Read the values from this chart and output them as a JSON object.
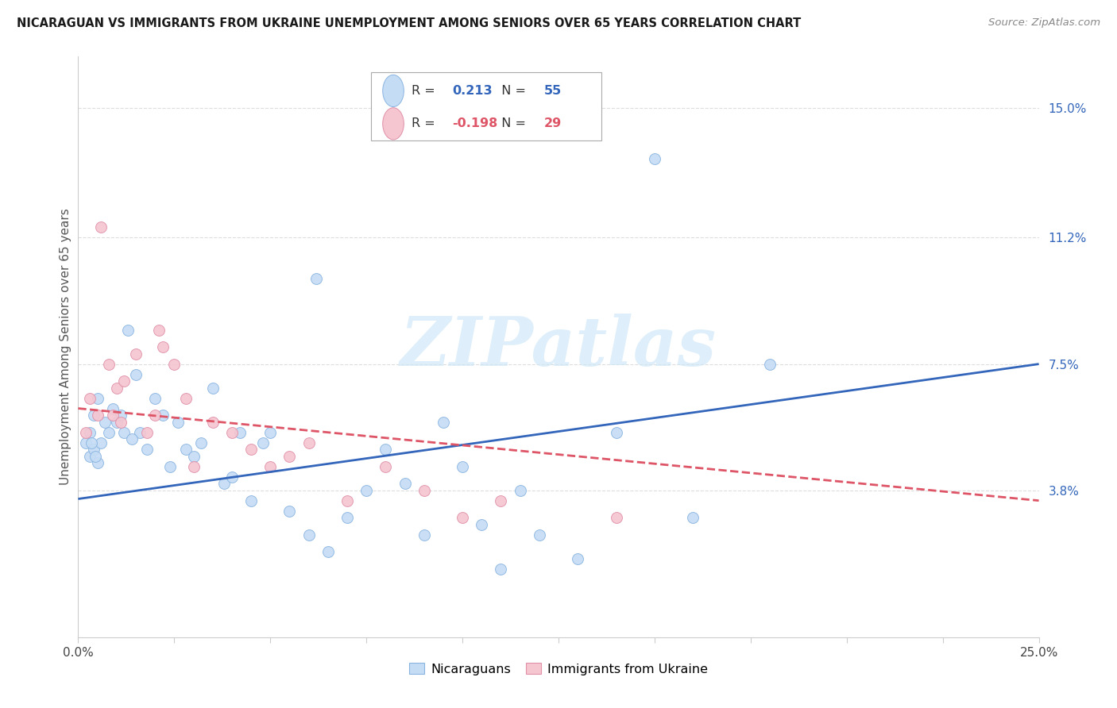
{
  "title": "NICARAGUAN VS IMMIGRANTS FROM UKRAINE UNEMPLOYMENT AMONG SENIORS OVER 65 YEARS CORRELATION CHART",
  "source": "Source: ZipAtlas.com",
  "ylabel": "Unemployment Among Seniors over 65 years",
  "xlim": [
    0.0,
    25.0
  ],
  "ylim": [
    -0.5,
    16.5
  ],
  "ytick_vals": [
    3.8,
    7.5,
    11.2,
    15.0
  ],
  "ytick_labels": [
    "3.8%",
    "7.5%",
    "11.2%",
    "15.0%"
  ],
  "xtick_vals": [
    0.0,
    2.5,
    5.0,
    7.5,
    10.0,
    12.5,
    15.0,
    17.5,
    20.0,
    22.5,
    25.0
  ],
  "xtick_label_vals": [
    0.0,
    25.0
  ],
  "blue_R": "0.213",
  "blue_N": "55",
  "pink_R": "-0.198",
  "pink_N": "29",
  "blue_fill": "#c5dcf5",
  "blue_edge": "#89b4e0",
  "pink_fill": "#f5c5d0",
  "pink_edge": "#e090a8",
  "blue_line_color": "#3366bb",
  "pink_line_color": "#dd5566",
  "legend_label_blue": "Nicaraguans",
  "legend_label_pink": "Immigrants from Ukraine",
  "blue_line_x0": 0.0,
  "blue_line_y0": 3.55,
  "blue_line_x1": 25.0,
  "blue_line_y1": 7.5,
  "pink_line_x0": 0.0,
  "pink_line_y0": 6.2,
  "pink_line_x1": 25.0,
  "pink_line_y1": 3.5,
  "blue_x": [
    0.2,
    0.3,
    0.3,
    0.4,
    0.4,
    0.5,
    0.5,
    0.6,
    0.7,
    0.8,
    0.9,
    1.0,
    1.1,
    1.2,
    1.3,
    1.5,
    1.6,
    1.8,
    2.0,
    2.2,
    2.4,
    2.6,
    2.8,
    3.0,
    3.2,
    3.5,
    3.8,
    4.0,
    4.2,
    4.5,
    5.0,
    5.5,
    6.0,
    6.5,
    7.0,
    7.5,
    8.0,
    8.5,
    9.0,
    9.5,
    10.0,
    10.5,
    11.0,
    11.5,
    12.0,
    13.0,
    14.0,
    15.0,
    16.0,
    18.0,
    0.35,
    0.45,
    1.4,
    4.8,
    6.2
  ],
  "blue_y": [
    5.2,
    5.5,
    4.8,
    6.0,
    5.0,
    6.5,
    4.6,
    5.2,
    5.8,
    5.5,
    6.2,
    5.8,
    6.0,
    5.5,
    8.5,
    7.2,
    5.5,
    5.0,
    6.5,
    6.0,
    4.5,
    5.8,
    5.0,
    4.8,
    5.2,
    6.8,
    4.0,
    4.2,
    5.5,
    3.5,
    5.5,
    3.2,
    2.5,
    2.0,
    3.0,
    3.8,
    5.0,
    4.0,
    2.5,
    5.8,
    4.5,
    2.8,
    1.5,
    3.8,
    2.5,
    1.8,
    5.5,
    13.5,
    3.0,
    7.5,
    5.2,
    4.8,
    5.3,
    5.2,
    10.0
  ],
  "pink_x": [
    0.2,
    0.3,
    0.5,
    0.6,
    0.8,
    1.0,
    1.2,
    1.5,
    1.8,
    2.0,
    2.2,
    2.5,
    2.8,
    3.0,
    3.5,
    4.0,
    4.5,
    5.0,
    5.5,
    6.0,
    7.0,
    8.0,
    9.0,
    10.0,
    11.0,
    14.0,
    2.1,
    0.9,
    1.1
  ],
  "pink_y": [
    5.5,
    6.5,
    6.0,
    11.5,
    7.5,
    6.8,
    7.0,
    7.8,
    5.5,
    6.0,
    8.0,
    7.5,
    6.5,
    4.5,
    5.8,
    5.5,
    5.0,
    4.5,
    4.8,
    5.2,
    3.5,
    4.5,
    3.8,
    3.0,
    3.5,
    3.0,
    8.5,
    6.0,
    5.8
  ],
  "marker_size": 100,
  "watermark_text": "ZIPatlas",
  "watermark_color": "#d0e8f8",
  "grid_color": "#dddddd",
  "spine_color": "#cccccc"
}
